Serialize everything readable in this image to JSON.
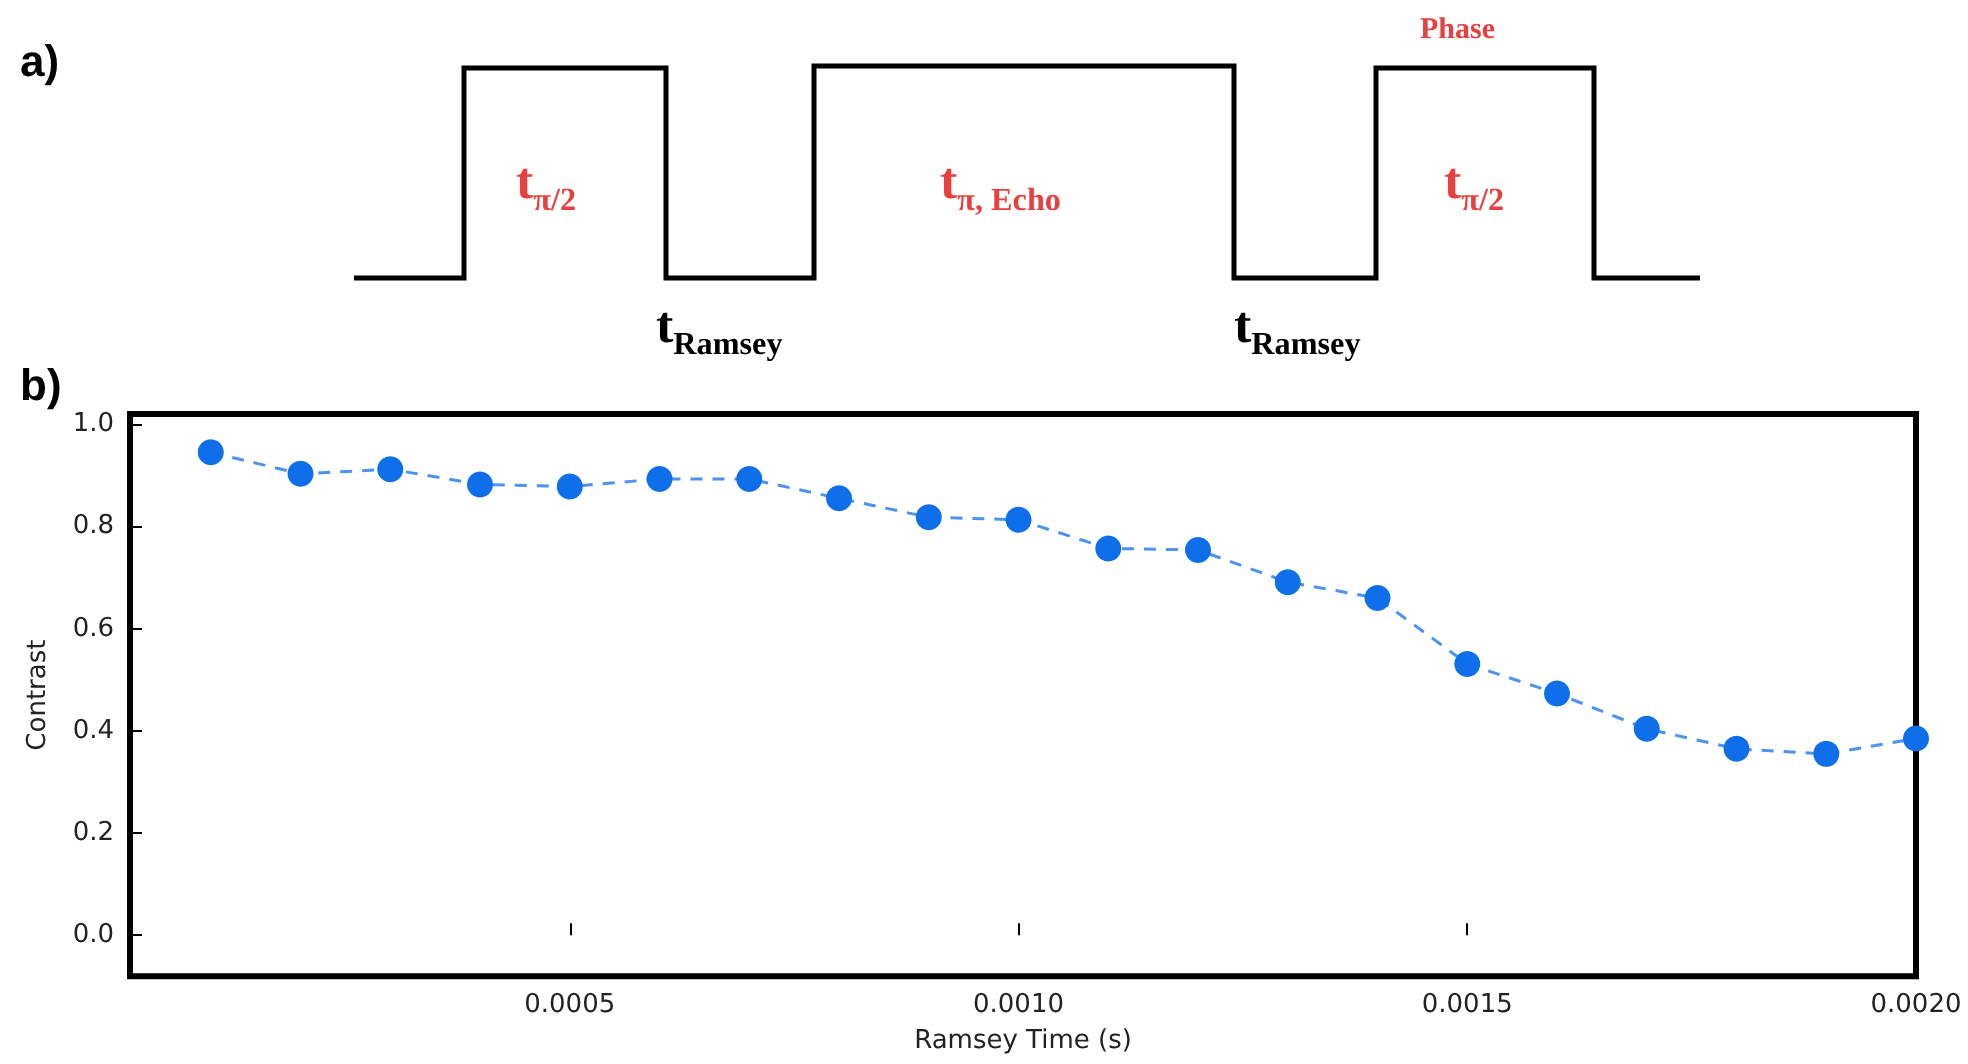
{
  "chart_data": [
    {
      "type": "other",
      "annotations": [
        "a)",
        "t$_{π/2}$",
        "t$_{π, Echo}$",
        "Phase",
        "t$_{π/2}$",
        "t$_{Ramsey}$",
        "t$_{Ramsey}$"
      ]
    },
    {
      "type": "line",
      "annotations": [
        "b)"
      ],
      "xlabel": "Ramsey Time (s)",
      "ylabel": "Contrast",
      "x": [
        0.0001,
        0.0002,
        0.0003,
        0.0004,
        0.0005,
        0.0006,
        0.0007,
        0.0008,
        0.0009,
        0.001,
        0.0011,
        0.0012,
        0.0013,
        0.0014,
        0.0015,
        0.0016,
        0.0017,
        0.0018,
        0.0019,
        0.002
      ],
      "series": [
        {
          "color": "#0f6fea",
          "values": [
            0.945,
            0.903,
            0.912,
            0.882,
            0.878,
            0.893,
            0.893,
            0.855,
            0.818,
            0.813,
            0.757,
            0.754,
            0.691,
            0.66,
            0.531,
            0.473,
            0.404,
            0.365,
            0.355,
            0.385
          ]
        }
      ],
      "xlim": [
        1e-05,
        0.002
      ],
      "ylim": [
        -0.08,
        1.02
      ],
      "xticks": [
        {
          "value": 0.0005,
          "label": "0.0005"
        },
        {
          "value": 0.001,
          "label": "0.0010"
        },
        {
          "value": 0.0015,
          "label": "0.0015"
        },
        {
          "value": 0.002,
          "label": "0.0020"
        }
      ],
      "yticks": [
        {
          "value": 0,
          "label": "0.0"
        },
        {
          "value": 0.2,
          "label": "0.2"
        },
        {
          "value": 0.4,
          "label": "0.4"
        },
        {
          "value": 0.6,
          "label": "0.6"
        },
        {
          "value": 0.8,
          "label": "0.8"
        },
        {
          "value": 1,
          "label": "1.0"
        }
      ],
      "marker": "circle",
      "line_style": "dashed"
    }
  ]
}
